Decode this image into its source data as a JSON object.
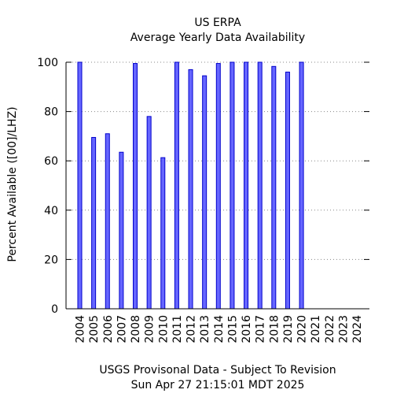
{
  "chart_data": {
    "type": "bar",
    "title": "US ERPA",
    "subtitle": "Average Yearly Data Availability",
    "ylabel": "Percent Available ([00]/LHZ)",
    "xlabel": "USGS Provisonal Data - Subject To Revision",
    "timestamp": "Sun Apr 27 21:15:01 MDT 2025",
    "categories": [
      "2004",
      "2005",
      "2006",
      "2007",
      "2008",
      "2009",
      "2010",
      "2011",
      "2012",
      "2013",
      "2014",
      "2015",
      "2016",
      "2017",
      "2018",
      "2019",
      "2020",
      "2021",
      "2022",
      "2023",
      "2024"
    ],
    "values": [
      100,
      69.5,
      71,
      63.5,
      99.5,
      78,
      61.3,
      100,
      97,
      94.5,
      99.5,
      100,
      100,
      100,
      98.3,
      96,
      100,
      0,
      0,
      0,
      0
    ],
    "yticks": [
      0,
      20,
      40,
      60,
      80,
      100
    ],
    "ylim": [
      0,
      100
    ],
    "grid": true,
    "bar_color": "#6666ff",
    "bar_edge_color": "#0000cc"
  }
}
